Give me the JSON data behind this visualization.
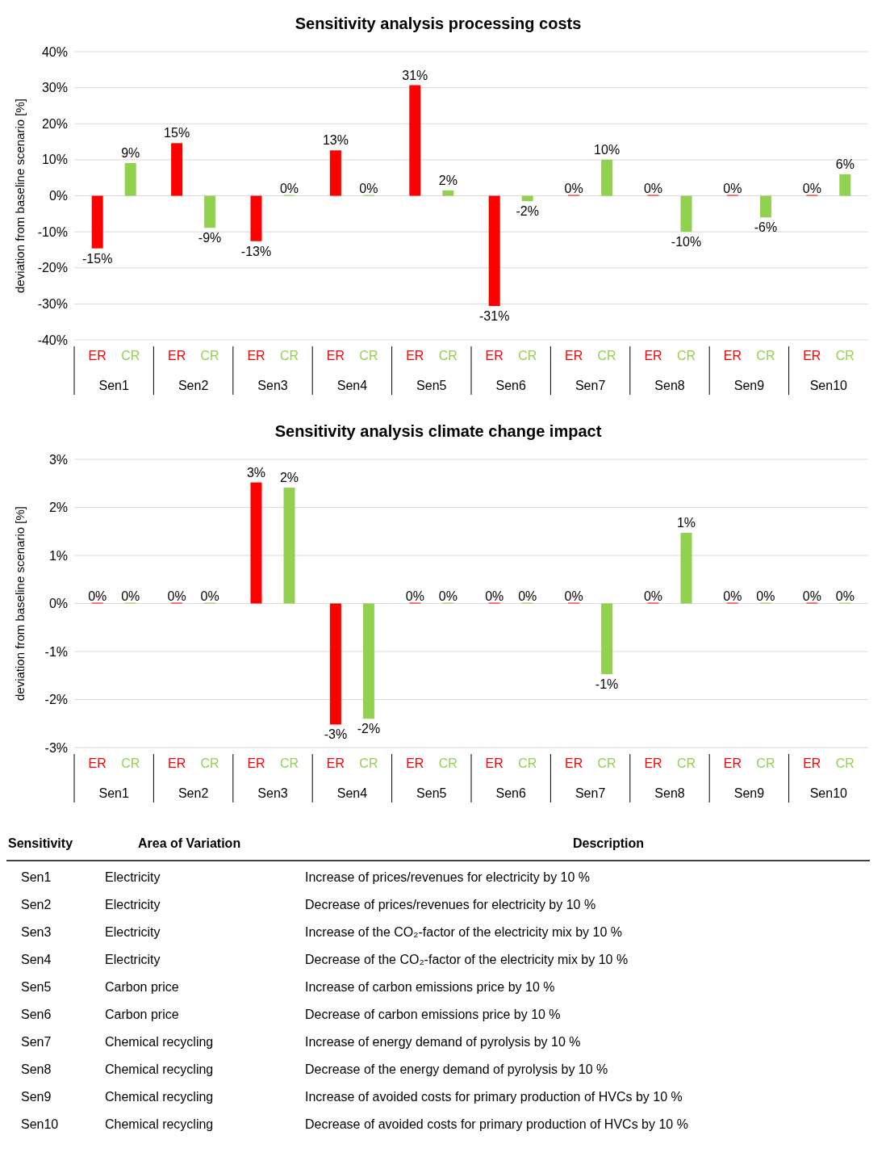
{
  "chart_data": [
    {
      "type": "bar",
      "title": "Sensitivity analysis processing costs",
      "ylabel": "deviation from baseline scenario [%]",
      "categories": [
        "Sen1",
        "Sen2",
        "Sen3",
        "Sen4",
        "Sen5",
        "Sen6",
        "Sen7",
        "Sen8",
        "Sen9",
        "Sen10"
      ],
      "ylim": [
        -40,
        40
      ],
      "yticks": [
        {
          "value": -40,
          "label": "-40%"
        },
        {
          "value": -30,
          "label": "-30%"
        },
        {
          "value": -20,
          "label": "-20%"
        },
        {
          "value": -10,
          "label": "-10%"
        },
        {
          "value": 0,
          "label": "0%"
        },
        {
          "value": 10,
          "label": "10%"
        },
        {
          "value": 20,
          "label": "20%"
        },
        {
          "value": 30,
          "label": "30%"
        },
        {
          "value": 40,
          "label": "40%"
        }
      ],
      "grid": "y",
      "series": [
        {
          "name": "ER",
          "color": "#ff0000",
          "values": [
            -14.6,
            14.6,
            -12.6,
            12.6,
            30.7,
            -30.6,
            0,
            0,
            0,
            0
          ],
          "value_labels": [
            "-15%",
            "15%",
            "-13%",
            "13%",
            "31%",
            "-31%",
            "0%",
            "0%",
            "0%",
            "0%"
          ]
        },
        {
          "name": "CR",
          "color": "#92d050",
          "values": [
            9.1,
            -8.9,
            0,
            0,
            1.5,
            -1.5,
            10,
            -10,
            -6,
            6
          ],
          "value_labels": [
            "9%",
            "-9%",
            "0%",
            "0%",
            "2%",
            "-2%",
            "10%",
            "-10%",
            "-6%",
            "6%"
          ]
        }
      ]
    },
    {
      "type": "bar",
      "title": "Sensitivity analysis climate change impact",
      "ylabel": "deviation from baseline scenario [%]",
      "categories": [
        "Sen1",
        "Sen2",
        "Sen3",
        "Sen4",
        "Sen5",
        "Sen6",
        "Sen7",
        "Sen8",
        "Sen9",
        "Sen10"
      ],
      "ylim": [
        -3,
        3
      ],
      "yticks": [
        {
          "value": -3,
          "label": "-3%"
        },
        {
          "value": -2,
          "label": "-2%"
        },
        {
          "value": -1,
          "label": "-1%"
        },
        {
          "value": 0,
          "label": "0%"
        },
        {
          "value": 1,
          "label": "1%"
        },
        {
          "value": 2,
          "label": "2%"
        },
        {
          "value": 3,
          "label": "3%"
        }
      ],
      "grid": "y",
      "series": [
        {
          "name": "ER",
          "color": "#ff0000",
          "values": [
            0,
            0,
            2.52,
            -2.52,
            0,
            0,
            0,
            0,
            0,
            0
          ],
          "value_labels": [
            "0%",
            "0%",
            "3%",
            "-3%",
            "0%",
            "0%",
            "0%",
            "0%",
            "0%",
            "0%"
          ]
        },
        {
          "name": "CR",
          "color": "#92d050",
          "values": [
            0,
            0,
            2.41,
            -2.4,
            0,
            0,
            -1.47,
            1.47,
            0,
            0
          ],
          "value_labels": [
            "0%",
            "0%",
            "2%",
            "-2%",
            "0%",
            "0%",
            "-1%",
            "1%",
            "0%",
            "0%"
          ]
        }
      ]
    },
    {
      "type": "other",
      "annotations": [
        "Sensitivity",
        "Area of Variation",
        "Description",
        "Sen1",
        "Electricity",
        "Increase of prices/revenues for electricity by 10 %",
        "Sen2",
        "Electricity",
        "Decrease of prices/revenues for electricity by 10 %",
        "Sen3",
        "Electricity",
        "Increase of the CO₂-factor of the electricity mix by 10 %",
        "Sen4",
        "Electricity",
        "Decrease of the CO₂-factor of the electricity mix by 10 %",
        "Sen5",
        "Carbon price",
        "Increase of carbon emissions price by 10 %",
        "Sen6",
        "Carbon price",
        "Decrease of carbon emissions price by 10 %",
        "Sen7",
        "Chemical recycling",
        "Increase of energy demand of pyrolysis by 10 %",
        "Sen8",
        "Chemical recycling",
        "Decrease of the energy demand of pyrolysis by 10 %",
        "Sen9",
        "Chemical recycling",
        "Increase of avoided costs for primary production of HVCs by 10 %",
        "Sen10",
        "Chemical recycling",
        "Decrease of avoided costs for primary production of HVCs by 10 %"
      ]
    }
  ]
}
